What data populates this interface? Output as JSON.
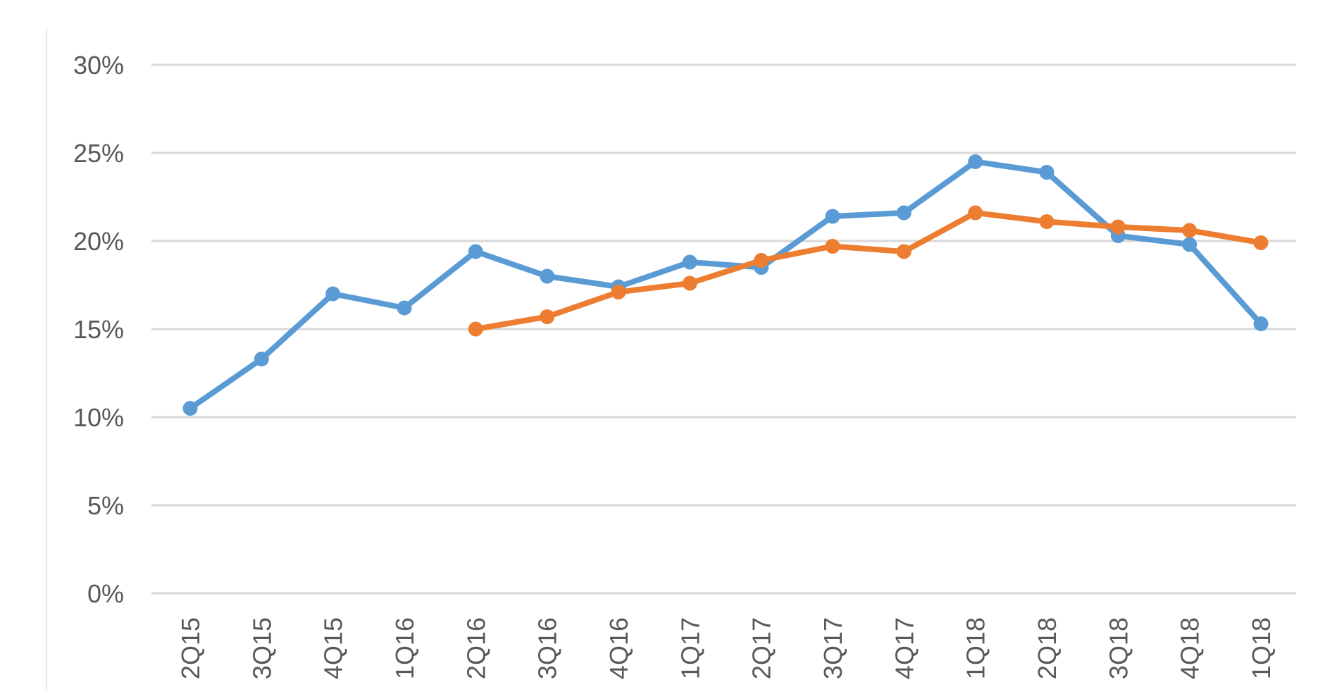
{
  "chart_data": {
    "type": "line",
    "categories": [
      "2Q15",
      "3Q15",
      "4Q15",
      "1Q16",
      "2Q16",
      "3Q16",
      "4Q16",
      "1Q17",
      "2Q17",
      "3Q17",
      "4Q17",
      "1Q18",
      "2Q18",
      "3Q18",
      "4Q18",
      "1Q18"
    ],
    "series": [
      {
        "color": "#5b9bd5",
        "values": [
          10.5,
          13.3,
          17.0,
          16.2,
          19.4,
          18.0,
          17.4,
          18.8,
          18.5,
          21.4,
          21.6,
          24.5,
          23.9,
          20.3,
          19.8,
          15.3
        ]
      },
      {
        "color": "#ed7d31",
        "values": [
          null,
          null,
          null,
          null,
          15.0,
          15.7,
          17.1,
          17.6,
          18.9,
          19.7,
          19.4,
          21.6,
          21.1,
          20.8,
          20.6,
          19.9
        ]
      }
    ],
    "y_ticks": [
      "0%",
      "5%",
      "10%",
      "15%",
      "20%",
      "25%",
      "30%"
    ],
    "ylim": [
      0,
      30
    ],
    "grid": true,
    "legend": "none",
    "title": "",
    "xlabel": "",
    "ylabel": ""
  }
}
